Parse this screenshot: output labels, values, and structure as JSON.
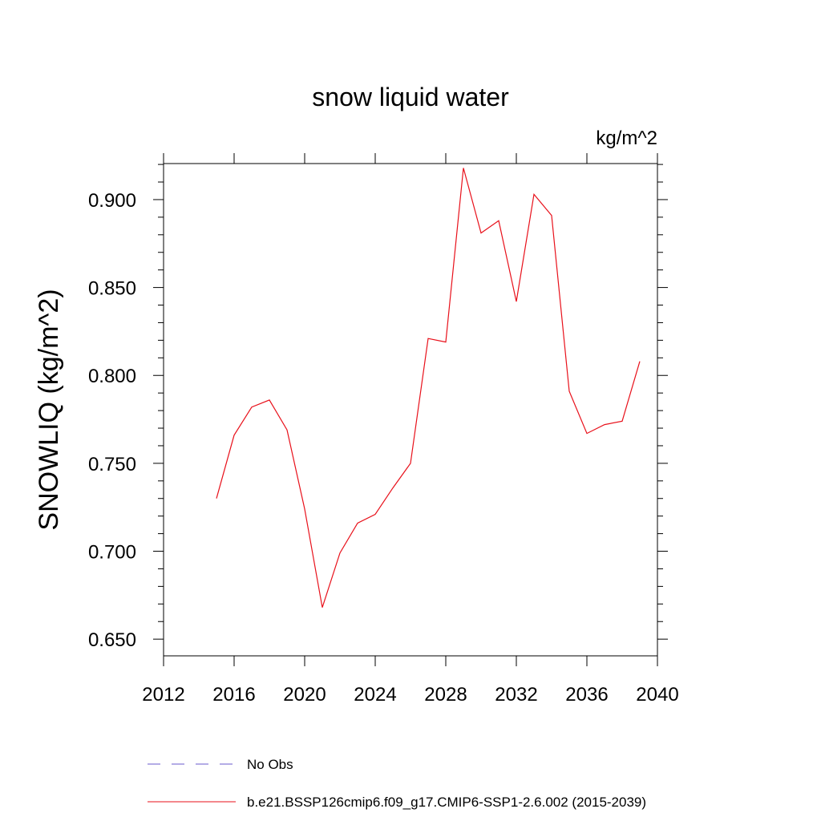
{
  "chart_data": {
    "type": "line",
    "title": "snow liquid water",
    "units_label": "kg/m^2",
    "ylabel": "SNOWLIQ  (kg/m^2)",
    "xlabel": "",
    "xlim": [
      2012,
      2040
    ],
    "ylim": [
      0.6405,
      0.9205
    ],
    "xticks": [
      2012,
      2016,
      2020,
      2024,
      2028,
      2032,
      2036,
      2040
    ],
    "xtick_labels": [
      "2012",
      "2016",
      "2020",
      "2024",
      "2028",
      "2032",
      "2036",
      "2040"
    ],
    "yticks": [
      0.65,
      0.7,
      0.75,
      0.8,
      0.85,
      0.9
    ],
    "ytick_labels": [
      "0.650",
      "0.700",
      "0.750",
      "0.800",
      "0.850",
      "0.900"
    ],
    "grid": false,
    "legend_position": "bottom",
    "series": [
      {
        "name": "No Obs",
        "color": "#6a5acd",
        "dashed": true,
        "x": [],
        "values": []
      },
      {
        "name": "b.e21.BSSP126cmip6.f09_g17.CMIP6-SSP1-2.6.002 (2015-2039)",
        "color": "#e8101a",
        "dashed": false,
        "x": [
          2015,
          2016,
          2017,
          2018,
          2019,
          2020,
          2021,
          2022,
          2023,
          2024,
          2025,
          2026,
          2027,
          2028,
          2029,
          2030,
          2031,
          2032,
          2033,
          2034,
          2035,
          2036,
          2037,
          2038,
          2039
        ],
        "values": [
          0.73,
          0.766,
          0.782,
          0.786,
          0.769,
          0.724,
          0.668,
          0.699,
          0.716,
          0.721,
          0.736,
          0.75,
          0.821,
          0.819,
          0.918,
          0.881,
          0.888,
          0.842,
          0.903,
          0.891,
          0.791,
          0.767,
          0.772,
          0.774,
          0.808
        ]
      }
    ]
  }
}
